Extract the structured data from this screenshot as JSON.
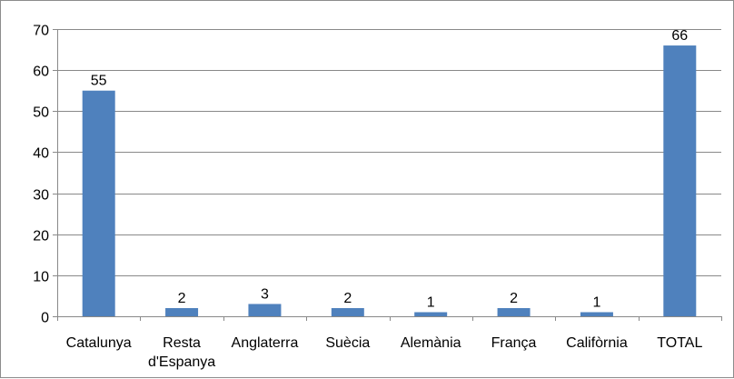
{
  "chart_data": {
    "type": "bar",
    "categories": [
      "Catalunya",
      "Resta d'Espanya",
      "Anglaterra",
      "Suècia",
      "Alemània",
      "França",
      "Califòrnia",
      "TOTAL"
    ],
    "category_label_lines": [
      [
        "Catalunya"
      ],
      [
        "Resta",
        "d'Espanya"
      ],
      [
        "Anglaterra"
      ],
      [
        "Suècia"
      ],
      [
        "Alemània"
      ],
      [
        "França"
      ],
      [
        "Califòrnia"
      ],
      [
        "TOTAL"
      ]
    ],
    "values": [
      55,
      2,
      3,
      2,
      1,
      2,
      1,
      66
    ],
    "data_labels": [
      "55",
      "2",
      "3",
      "2",
      "1",
      "2",
      "1",
      "66"
    ],
    "ylim": [
      0,
      70
    ],
    "yticks": [
      0,
      10,
      20,
      30,
      40,
      50,
      60,
      70
    ],
    "ytick_labels": [
      "0",
      "10",
      "20",
      "30",
      "40",
      "50",
      "60",
      "70"
    ],
    "title": "",
    "xlabel": "",
    "ylabel": "",
    "grid": true,
    "legend": "none",
    "bar_color": "#4f81bd",
    "grid_color": "#898989"
  }
}
